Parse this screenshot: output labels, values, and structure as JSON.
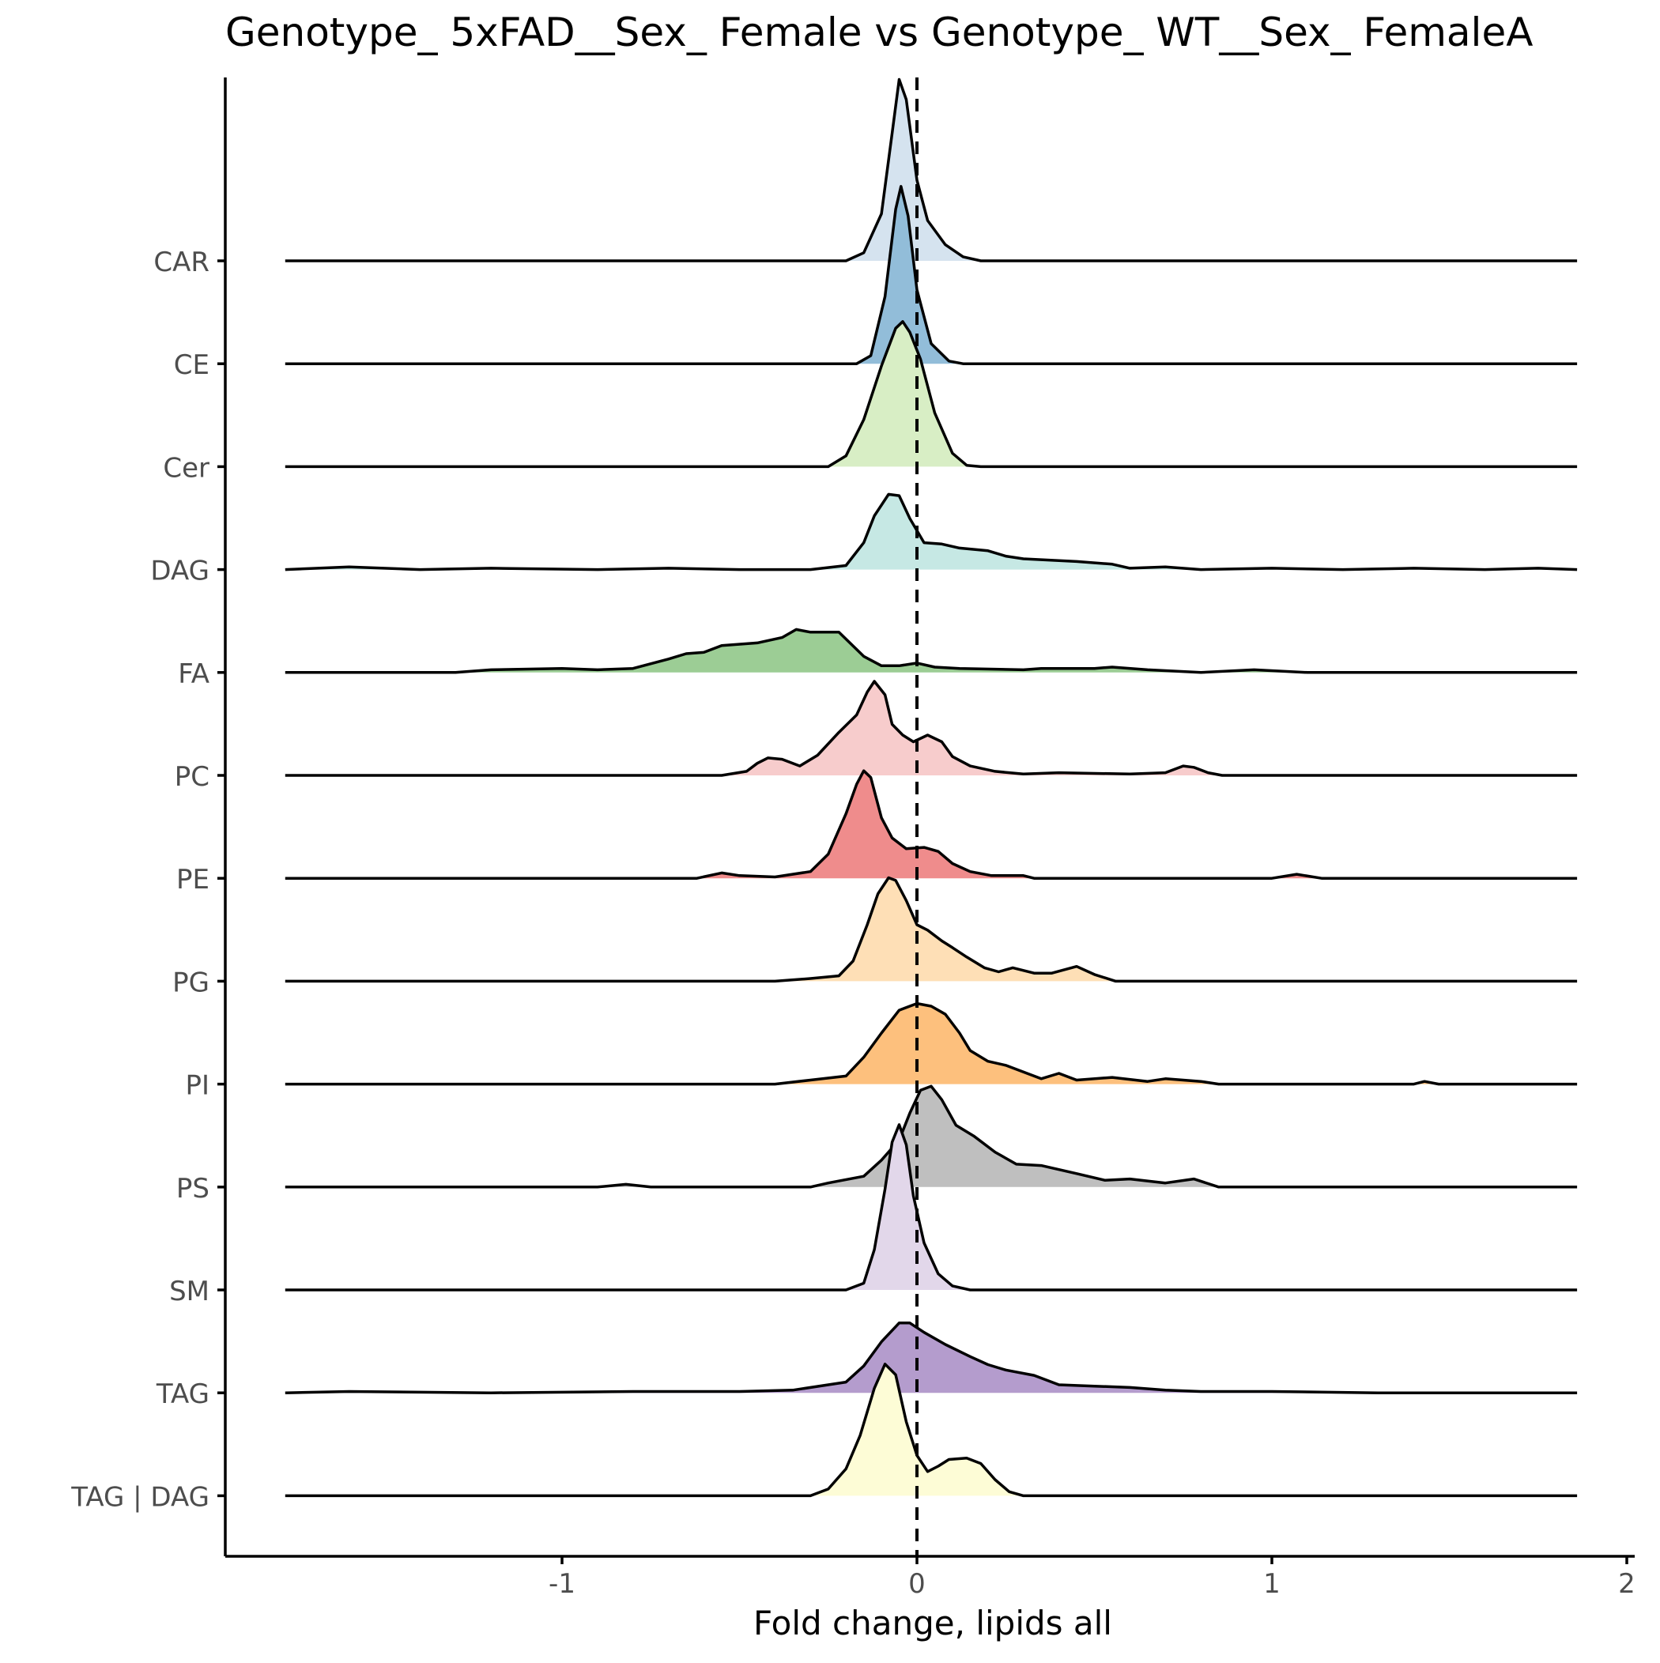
{
  "chart_data": {
    "type": "ridgeline",
    "title": "Genotype_ 5xFAD__Sex_ Female vs Genotype_ WT__Sex_ FemaleA",
    "xlabel": "Fold change, lipids all",
    "ylabel": "",
    "xlim": [
      -2.0,
      2.02
    ],
    "x_ticks": [
      -1,
      0,
      1,
      2
    ],
    "x_tick_labels": [
      "-1",
      "0",
      "1",
      "2"
    ],
    "x_range_of_densities": [
      -1.78,
      1.86
    ],
    "reference_line": {
      "x": 0,
      "style": "dashed"
    },
    "grid": false,
    "legend": "none",
    "categories": [
      "CAR",
      "CE",
      "Cer",
      "DAG",
      "FA",
      "PC",
      "PE",
      "PG",
      "PI",
      "PS",
      "SM",
      "TAG",
      "TAG | DAG"
    ],
    "series": [
      {
        "name": "CAR",
        "color": "#d5e3ef",
        "points": [
          [
            -1.78,
            0
          ],
          [
            -0.2,
            0
          ],
          [
            -0.15,
            0.06
          ],
          [
            -0.1,
            0.35
          ],
          [
            -0.07,
            0.95
          ],
          [
            -0.05,
            1.35
          ],
          [
            -0.03,
            1.2
          ],
          [
            0,
            0.6
          ],
          [
            0.03,
            0.3
          ],
          [
            0.08,
            0.12
          ],
          [
            0.13,
            0.03
          ],
          [
            0.18,
            0
          ],
          [
            1.86,
            0
          ]
        ]
      },
      {
        "name": "CE",
        "color": "#92bdd9",
        "points": [
          [
            -1.78,
            0
          ],
          [
            -0.17,
            0
          ],
          [
            -0.13,
            0.06
          ],
          [
            -0.09,
            0.5
          ],
          [
            -0.06,
            1.15
          ],
          [
            -0.045,
            1.32
          ],
          [
            -0.025,
            1.1
          ],
          [
            0,
            0.55
          ],
          [
            0.04,
            0.15
          ],
          [
            0.09,
            0.02
          ],
          [
            0.13,
            0
          ],
          [
            1.86,
            0
          ]
        ]
      },
      {
        "name": "Cer",
        "color": "#d8eec5",
        "points": [
          [
            -1.78,
            0
          ],
          [
            -0.25,
            0
          ],
          [
            -0.2,
            0.08
          ],
          [
            -0.15,
            0.35
          ],
          [
            -0.1,
            0.75
          ],
          [
            -0.06,
            1.03
          ],
          [
            -0.04,
            1.08
          ],
          [
            -0.02,
            1.0
          ],
          [
            0.01,
            0.8
          ],
          [
            0.05,
            0.4
          ],
          [
            0.1,
            0.1
          ],
          [
            0.14,
            0.01
          ],
          [
            0.18,
            0
          ],
          [
            1.86,
            0
          ]
        ]
      },
      {
        "name": "DAG",
        "color": "#c6e8e4",
        "points": [
          [
            -1.78,
            0
          ],
          [
            -1.6,
            0.02
          ],
          [
            -1.4,
            0
          ],
          [
            -1.2,
            0.01
          ],
          [
            -0.9,
            0
          ],
          [
            -0.7,
            0.01
          ],
          [
            -0.5,
            0
          ],
          [
            -0.3,
            0
          ],
          [
            -0.2,
            0.03
          ],
          [
            -0.15,
            0.2
          ],
          [
            -0.12,
            0.4
          ],
          [
            -0.08,
            0.56
          ],
          [
            -0.05,
            0.55
          ],
          [
            -0.02,
            0.38
          ],
          [
            0.02,
            0.2
          ],
          [
            0.07,
            0.19
          ],
          [
            0.12,
            0.16
          ],
          [
            0.2,
            0.14
          ],
          [
            0.25,
            0.1
          ],
          [
            0.3,
            0.08
          ],
          [
            0.45,
            0.06
          ],
          [
            0.55,
            0.04
          ],
          [
            0.6,
            0.01
          ],
          [
            0.7,
            0.02
          ],
          [
            0.8,
            0
          ],
          [
            1.0,
            0.01
          ],
          [
            1.2,
            0
          ],
          [
            1.4,
            0.01
          ],
          [
            1.6,
            0
          ],
          [
            1.75,
            0.01
          ],
          [
            1.86,
            0
          ]
        ]
      },
      {
        "name": "FA",
        "color": "#9ccd95",
        "points": [
          [
            -1.78,
            0
          ],
          [
            -1.3,
            0
          ],
          [
            -1.2,
            0.02
          ],
          [
            -1.0,
            0.03
          ],
          [
            -0.9,
            0.02
          ],
          [
            -0.8,
            0.03
          ],
          [
            -0.7,
            0.1
          ],
          [
            -0.65,
            0.14
          ],
          [
            -0.6,
            0.15
          ],
          [
            -0.55,
            0.2
          ],
          [
            -0.45,
            0.22
          ],
          [
            -0.38,
            0.26
          ],
          [
            -0.34,
            0.32
          ],
          [
            -0.3,
            0.3
          ],
          [
            -0.22,
            0.3
          ],
          [
            -0.15,
            0.12
          ],
          [
            -0.1,
            0.05
          ],
          [
            -0.05,
            0.05
          ],
          [
            0,
            0.07
          ],
          [
            0.05,
            0.04
          ],
          [
            0.12,
            0.03
          ],
          [
            0.3,
            0.02
          ],
          [
            0.35,
            0.03
          ],
          [
            0.5,
            0.03
          ],
          [
            0.55,
            0.04
          ],
          [
            0.65,
            0.02
          ],
          [
            0.8,
            0
          ],
          [
            0.95,
            0.02
          ],
          [
            1.1,
            0
          ],
          [
            1.86,
            0
          ]
        ]
      },
      {
        "name": "PC",
        "color": "#f7cccc",
        "points": [
          [
            -1.78,
            0
          ],
          [
            -0.55,
            0
          ],
          [
            -0.48,
            0.03
          ],
          [
            -0.45,
            0.09
          ],
          [
            -0.42,
            0.13
          ],
          [
            -0.38,
            0.12
          ],
          [
            -0.33,
            0.07
          ],
          [
            -0.28,
            0.15
          ],
          [
            -0.22,
            0.32
          ],
          [
            -0.17,
            0.45
          ],
          [
            -0.14,
            0.62
          ],
          [
            -0.12,
            0.7
          ],
          [
            -0.09,
            0.6
          ],
          [
            -0.07,
            0.38
          ],
          [
            -0.04,
            0.3
          ],
          [
            -0.01,
            0.25
          ],
          [
            0.03,
            0.3
          ],
          [
            0.07,
            0.25
          ],
          [
            0.1,
            0.14
          ],
          [
            0.15,
            0.07
          ],
          [
            0.22,
            0.03
          ],
          [
            0.3,
            0.01
          ],
          [
            0.4,
            0.02
          ],
          [
            0.6,
            0.01
          ],
          [
            0.7,
            0.02
          ],
          [
            0.75,
            0.07
          ],
          [
            0.78,
            0.06
          ],
          [
            0.82,
            0.02
          ],
          [
            0.86,
            0
          ],
          [
            1.86,
            0
          ]
        ]
      },
      {
        "name": "PE",
        "color": "#ef8c8c",
        "points": [
          [
            -1.78,
            0
          ],
          [
            -0.62,
            0
          ],
          [
            -0.55,
            0.04
          ],
          [
            -0.5,
            0.02
          ],
          [
            -0.4,
            0.01
          ],
          [
            -0.3,
            0.05
          ],
          [
            -0.25,
            0.18
          ],
          [
            -0.2,
            0.48
          ],
          [
            -0.17,
            0.7
          ],
          [
            -0.15,
            0.8
          ],
          [
            -0.13,
            0.75
          ],
          [
            -0.1,
            0.45
          ],
          [
            -0.07,
            0.3
          ],
          [
            -0.03,
            0.22
          ],
          [
            0.02,
            0.23
          ],
          [
            0.06,
            0.2
          ],
          [
            0.1,
            0.11
          ],
          [
            0.15,
            0.05
          ],
          [
            0.21,
            0.02
          ],
          [
            0.3,
            0.02
          ],
          [
            0.33,
            0
          ],
          [
            1.0,
            0
          ],
          [
            1.07,
            0.03
          ],
          [
            1.14,
            0
          ],
          [
            1.86,
            0
          ]
        ]
      },
      {
        "name": "PG",
        "color": "#fedfb6",
        "points": [
          [
            -1.78,
            0
          ],
          [
            -0.4,
            0
          ],
          [
            -0.3,
            0.02
          ],
          [
            -0.22,
            0.04
          ],
          [
            -0.18,
            0.15
          ],
          [
            -0.14,
            0.42
          ],
          [
            -0.11,
            0.65
          ],
          [
            -0.08,
            0.77
          ],
          [
            -0.06,
            0.75
          ],
          [
            -0.03,
            0.6
          ],
          [
            0,
            0.42
          ],
          [
            0.03,
            0.38
          ],
          [
            0.07,
            0.3
          ],
          [
            0.1,
            0.25
          ],
          [
            0.14,
            0.18
          ],
          [
            0.19,
            0.1
          ],
          [
            0.23,
            0.07
          ],
          [
            0.27,
            0.1
          ],
          [
            0.33,
            0.06
          ],
          [
            0.38,
            0.06
          ],
          [
            0.45,
            0.11
          ],
          [
            0.5,
            0.05
          ],
          [
            0.56,
            0
          ],
          [
            1.86,
            0
          ]
        ]
      },
      {
        "name": "PI",
        "color": "#fdc07d",
        "points": [
          [
            -1.78,
            0
          ],
          [
            -0.4,
            0
          ],
          [
            -0.3,
            0.03
          ],
          [
            -0.2,
            0.06
          ],
          [
            -0.15,
            0.2
          ],
          [
            -0.1,
            0.38
          ],
          [
            -0.05,
            0.55
          ],
          [
            0,
            0.6
          ],
          [
            0.04,
            0.58
          ],
          [
            0.08,
            0.52
          ],
          [
            0.12,
            0.38
          ],
          [
            0.15,
            0.25
          ],
          [
            0.2,
            0.17
          ],
          [
            0.25,
            0.14
          ],
          [
            0.3,
            0.09
          ],
          [
            0.35,
            0.04
          ],
          [
            0.4,
            0.08
          ],
          [
            0.45,
            0.03
          ],
          [
            0.55,
            0.05
          ],
          [
            0.65,
            0.02
          ],
          [
            0.7,
            0.04
          ],
          [
            0.8,
            0.02
          ],
          [
            0.85,
            0
          ],
          [
            1.4,
            0
          ],
          [
            1.43,
            0.02
          ],
          [
            1.47,
            0
          ],
          [
            1.86,
            0
          ]
        ]
      },
      {
        "name": "PS",
        "color": "#bfbfbf",
        "points": [
          [
            -1.78,
            0
          ],
          [
            -0.9,
            0
          ],
          [
            -0.82,
            0.02
          ],
          [
            -0.75,
            0
          ],
          [
            -0.3,
            0
          ],
          [
            -0.25,
            0.03
          ],
          [
            -0.15,
            0.08
          ],
          [
            -0.1,
            0.2
          ],
          [
            -0.05,
            0.35
          ],
          [
            -0.02,
            0.55
          ],
          [
            0.01,
            0.72
          ],
          [
            0.04,
            0.75
          ],
          [
            0.07,
            0.65
          ],
          [
            0.11,
            0.46
          ],
          [
            0.16,
            0.38
          ],
          [
            0.22,
            0.26
          ],
          [
            0.28,
            0.17
          ],
          [
            0.35,
            0.16
          ],
          [
            0.45,
            0.1
          ],
          [
            0.53,
            0.05
          ],
          [
            0.6,
            0.06
          ],
          [
            0.7,
            0.03
          ],
          [
            0.78,
            0.06
          ],
          [
            0.85,
            0
          ],
          [
            1.86,
            0
          ]
        ]
      },
      {
        "name": "SM",
        "color": "#e2d7ea",
        "points": [
          [
            -1.78,
            0
          ],
          [
            -0.2,
            0
          ],
          [
            -0.15,
            0.05
          ],
          [
            -0.12,
            0.3
          ],
          [
            -0.09,
            0.75
          ],
          [
            -0.07,
            1.1
          ],
          [
            -0.05,
            1.23
          ],
          [
            -0.03,
            1.08
          ],
          [
            -0.01,
            0.7
          ],
          [
            0.02,
            0.35
          ],
          [
            0.06,
            0.12
          ],
          [
            0.1,
            0.03
          ],
          [
            0.15,
            0
          ],
          [
            1.86,
            0
          ]
        ]
      },
      {
        "name": "TAG",
        "color": "#b49ccd",
        "points": [
          [
            -1.78,
            0
          ],
          [
            -1.6,
            0.01
          ],
          [
            -1.2,
            0
          ],
          [
            -0.8,
            0.01
          ],
          [
            -0.5,
            0.01
          ],
          [
            -0.35,
            0.02
          ],
          [
            -0.25,
            0.06
          ],
          [
            -0.2,
            0.08
          ],
          [
            -0.15,
            0.2
          ],
          [
            -0.1,
            0.38
          ],
          [
            -0.05,
            0.52
          ],
          [
            -0.02,
            0.52
          ],
          [
            0.02,
            0.45
          ],
          [
            0.08,
            0.36
          ],
          [
            0.15,
            0.27
          ],
          [
            0.2,
            0.21
          ],
          [
            0.25,
            0.17
          ],
          [
            0.33,
            0.13
          ],
          [
            0.4,
            0.06
          ],
          [
            0.5,
            0.05
          ],
          [
            0.6,
            0.04
          ],
          [
            0.7,
            0.02
          ],
          [
            0.8,
            0.01
          ],
          [
            1.0,
            0.01
          ],
          [
            1.3,
            0
          ],
          [
            1.86,
            0
          ]
        ]
      },
      {
        "name": "TAG | DAG",
        "color": "#fdfcd6",
        "points": [
          [
            -1.78,
            0
          ],
          [
            -0.3,
            0
          ],
          [
            -0.25,
            0.05
          ],
          [
            -0.2,
            0.2
          ],
          [
            -0.16,
            0.45
          ],
          [
            -0.12,
            0.8
          ],
          [
            -0.09,
            0.98
          ],
          [
            -0.06,
            0.9
          ],
          [
            -0.03,
            0.55
          ],
          [
            0,
            0.3
          ],
          [
            0.03,
            0.18
          ],
          [
            0.06,
            0.22
          ],
          [
            0.09,
            0.27
          ],
          [
            0.14,
            0.28
          ],
          [
            0.18,
            0.24
          ],
          [
            0.22,
            0.12
          ],
          [
            0.26,
            0.03
          ],
          [
            0.3,
            0
          ],
          [
            1.86,
            0
          ]
        ]
      }
    ]
  }
}
